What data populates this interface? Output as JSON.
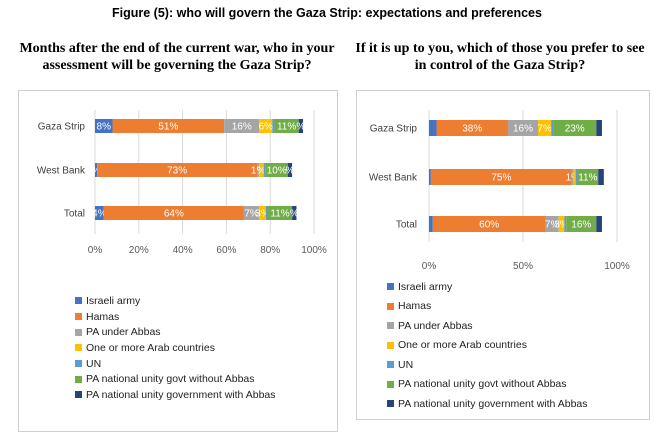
{
  "figure_title": "Figure (5): who will govern the Gaza Strip: expectations and preferences",
  "colors": {
    "Israeli army": "#4472c4",
    "Hamas": "#ed7d31",
    "PA under Abbas": "#a5a5a5",
    "One or more Arab countries": "#ffc000",
    "UN": "#5b9bd5",
    "PA national unity govt without Abbas": "#70ad47",
    "PA national unity government with Abbas": "#264478"
  },
  "legend": [
    "Israeli army",
    "Hamas",
    "PA under Abbas",
    "One or more Arab countries",
    "UN",
    "PA national unity govt without Abbas",
    "PA national unity government with Abbas"
  ],
  "chart_data": [
    {
      "type": "bar",
      "orientation": "horizontal-stacked",
      "title": "Months after the end of the current war, who in your assessment will be governing the Gaza Strip?",
      "categories": [
        "Gaza Strip",
        "West Bank",
        "Total"
      ],
      "xlim": [
        0,
        100
      ],
      "xticks": [
        "0%",
        "20%",
        "40%",
        "60%",
        "80%",
        "100%"
      ],
      "series": [
        {
          "name": "Israeli army",
          "values": [
            8,
            1,
            4
          ],
          "labels": [
            "8%",
            "%",
            "4%"
          ]
        },
        {
          "name": "Hamas",
          "values": [
            51,
            73,
            64
          ],
          "labels": [
            "51%",
            "73%",
            "64%"
          ]
        },
        {
          "name": "PA under Abbas",
          "values": [
            16,
            1,
            7
          ],
          "labels": [
            "16%",
            "1%",
            "7%"
          ]
        },
        {
          "name": "One or more Arab countries",
          "values": [
            6,
            2,
            3
          ],
          "labels": [
            "6%",
            "%",
            "3%"
          ]
        },
        {
          "name": "UN",
          "values": [
            1,
            1,
            1
          ],
          "labels": [
            "",
            "",
            ""
          ]
        },
        {
          "name": "PA national unity govt without Abbas",
          "values": [
            11,
            10,
            11
          ],
          "labels": [
            "11%",
            "10%",
            "11%"
          ]
        },
        {
          "name": "PA national unity government with Abbas",
          "values": [
            2,
            2,
            2
          ],
          "labels": [
            "%",
            "%",
            "%"
          ]
        }
      ],
      "legend_position": "bottom"
    },
    {
      "type": "bar",
      "orientation": "horizontal-stacked",
      "title": "If it is up to you, which of those you prefer to see in control of the Gaza Strip?",
      "categories": [
        "Gaza Strip",
        "West Bank",
        "Total"
      ],
      "xlim": [
        0,
        100
      ],
      "xticks": [
        "0%",
        "50%",
        "100%"
      ],
      "series": [
        {
          "name": "Israeli army",
          "values": [
            4,
            1,
            2
          ],
          "labels": [
            "",
            "",
            ""
          ]
        },
        {
          "name": "Hamas",
          "values": [
            38,
            75,
            60
          ],
          "labels": [
            "38%",
            "75%",
            "60%"
          ]
        },
        {
          "name": "PA under Abbas",
          "values": [
            16,
            1,
            7
          ],
          "labels": [
            "16%",
            "1%",
            "7%"
          ]
        },
        {
          "name": "One or more Arab countries",
          "values": [
            7,
            1,
            3
          ],
          "labels": [
            "7%",
            "",
            "3%"
          ]
        },
        {
          "name": "UN",
          "values": [
            1,
            1,
            1
          ],
          "labels": [
            "",
            "",
            ""
          ]
        },
        {
          "name": "PA national unity govt without Abbas",
          "values": [
            23,
            11,
            16
          ],
          "labels": [
            "23%",
            "11%",
            "16%"
          ]
        },
        {
          "name": "PA national unity government with Abbas",
          "values": [
            3,
            3,
            3
          ],
          "labels": [
            "",
            "",
            ""
          ]
        }
      ],
      "legend_position": "bottom"
    }
  ]
}
